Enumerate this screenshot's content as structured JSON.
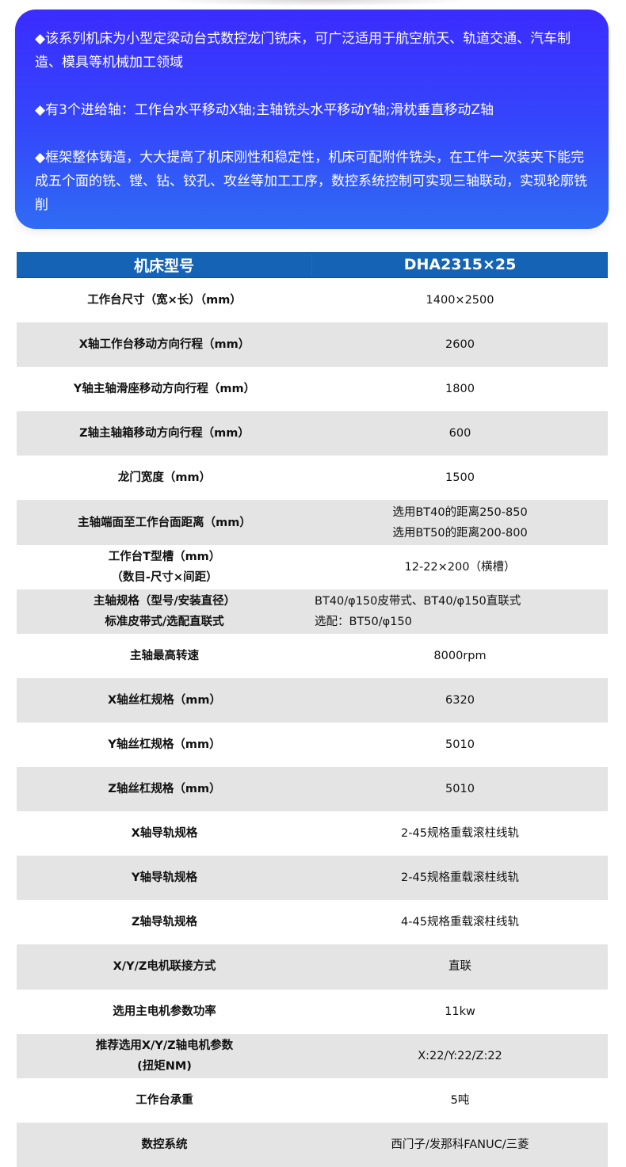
{
  "intro": [
    "◆该系列机床为小型定梁动台式数控龙门铣床，可广泛适用于航空航天、轨道交通、汽车制造、模具等机械加工领域",
    "◆有3个进给轴：工作台水平移动X轴;主轴铣头水平移动Y轴;滑枕垂直移动Z轴",
    "◆框架整体铸造，大大提高了机床刚性和稳定性，机床可配附件铣头，在工件一次装夹下能完成五个面的铣、镗、钻、铰孔、攻丝等加工工序，数控系统控制可实现三轴联动，实现轮廓铣削"
  ],
  "table": {
    "header": [
      "机床型号",
      "DHA2315×25"
    ],
    "rows": [
      {
        "k": [
          "工作台尺寸（宽×长）（mm）"
        ],
        "v": [
          "1400×2500"
        ]
      },
      {
        "k": [
          "X轴工作台移动方向行程（mm）"
        ],
        "v": [
          "2600"
        ]
      },
      {
        "k": [
          "Y轴主轴滑座移动方向行程（mm）"
        ],
        "v": [
          "1800"
        ]
      },
      {
        "k": [
          "Z轴主轴箱移动方向行程（mm）"
        ],
        "v": [
          "600"
        ]
      },
      {
        "k": [
          "龙门宽度（mm）"
        ],
        "v": [
          "1500"
        ]
      },
      {
        "k": [
          "主轴端面至工作台面距离（mm）"
        ],
        "v": [
          "选用BT40的距离250-850",
          "选用BT50的距离200-800"
        ]
      },
      {
        "k": [
          "工作台T型槽（mm）",
          "（数目-尺寸×间距）"
        ],
        "v": [
          "12-22×200（横槽）"
        ]
      },
      {
        "k": [
          "主轴规格（型号/安装直径）",
          "标准皮带式/选配直联式"
        ],
        "v": [
          "BT40/φ150皮带式、BT40/φ150直联式",
          "选配：BT50/φ150"
        ]
      },
      {
        "k": [
          "主轴最高转速"
        ],
        "v": [
          "8000rpm"
        ]
      },
      {
        "k": [
          "X轴丝杠规格（mm）"
        ],
        "v": [
          "6320"
        ]
      },
      {
        "k": [
          "Y轴丝杠规格（mm）"
        ],
        "v": [
          "5010"
        ]
      },
      {
        "k": [
          "Z轴丝杠规格（mm）"
        ],
        "v": [
          "5010"
        ]
      },
      {
        "k": [
          "X轴导轨规格"
        ],
        "v": [
          "2-45规格重载滚柱线轨"
        ]
      },
      {
        "k": [
          "Y轴导轨规格"
        ],
        "v": [
          "2-45规格重载滚柱线轨"
        ]
      },
      {
        "k": [
          "Z轴导轨规格"
        ],
        "v": [
          "4-45规格重载滚柱线轨"
        ]
      },
      {
        "k": [
          "X/Y/Z电机联接方式"
        ],
        "v": [
          "直联"
        ]
      },
      {
        "k": [
          "选用主电机参数功率"
        ],
        "v": [
          "11kw"
        ]
      },
      {
        "k": [
          "推荐选用X/Y/Z轴电机参数",
          "(扭矩NM)"
        ],
        "v": [
          "X:22/Y:22/Z:22"
        ]
      },
      {
        "k": [
          "工作台承重"
        ],
        "v": [
          "5吨"
        ]
      },
      {
        "k": [
          "数控系统"
        ],
        "v": [
          "西门子/发那科FANUC/三菱"
        ]
      }
    ]
  }
}
